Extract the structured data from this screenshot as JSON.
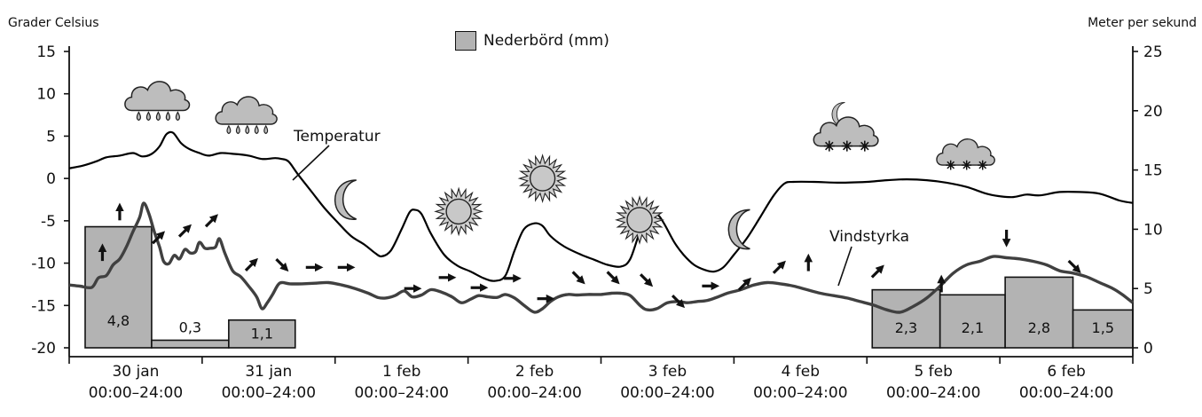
{
  "texts": {
    "left_axis_title": "Grader Celsius",
    "right_axis_title": "Meter per sekund",
    "legend_label": "Nederbörd (mm)",
    "temp_label": "Temperatur",
    "wind_label": "Vindstyrka"
  },
  "chart_data": {
    "type": "line",
    "days": [
      {
        "date": "30 jan",
        "time": "00:00–24:00"
      },
      {
        "date": "31 jan",
        "time": "00:00–24:00"
      },
      {
        "date": "1 feb",
        "time": "00:00–24:00"
      },
      {
        "date": "2 feb",
        "time": "00:00–24:00"
      },
      {
        "date": "3 feb",
        "time": "00:00–24:00"
      },
      {
        "date": "4 feb",
        "time": "00:00–24:00"
      },
      {
        "date": "5 feb",
        "time": "00:00–24:00"
      },
      {
        "date": "6 feb",
        "time": "00:00–24:00"
      }
    ],
    "x_unit": "days since 30 jan 00:00",
    "left_axis": {
      "label": "Grader Celsius",
      "min": -20,
      "max": 15,
      "ticks": [
        15,
        10,
        5,
        0,
        -5,
        -10,
        -15,
        -20
      ]
    },
    "right_axis": {
      "label": "Meter per sekund",
      "min": 0,
      "max": 25,
      "ticks": [
        25,
        20,
        15,
        10,
        5,
        0
      ]
    },
    "precipitation": {
      "name": "Nederbörd (mm)",
      "color": "#b3b3b3",
      "bars": [
        {
          "from": 0.12,
          "to": 0.62,
          "value": 4.8,
          "label": "4,8"
        },
        {
          "from": 0.62,
          "to": 1.2,
          "value": 0.3,
          "label": "0,3"
        },
        {
          "from": 1.2,
          "to": 1.7,
          "value": 1.1,
          "label": "1,1"
        },
        {
          "from": 6.04,
          "to": 6.55,
          "value": 2.3,
          "label": "2,3"
        },
        {
          "from": 6.55,
          "to": 7.04,
          "value": 2.1,
          "label": "2,1"
        },
        {
          "from": 7.04,
          "to": 7.55,
          "value": 2.8,
          "label": "2,8"
        },
        {
          "from": 7.55,
          "to": 8.0,
          "value": 1.5,
          "label": "1,5"
        }
      ]
    },
    "temperature": {
      "name": "Temperatur",
      "unit": "°C",
      "color": "#000000",
      "points": [
        [
          0,
          1.2
        ],
        [
          0.1,
          1.5
        ],
        [
          0.2,
          2.0
        ],
        [
          0.28,
          2.5
        ],
        [
          0.38,
          2.7
        ],
        [
          0.48,
          3.0
        ],
        [
          0.55,
          2.6
        ],
        [
          0.62,
          2.9
        ],
        [
          0.68,
          3.8
        ],
        [
          0.73,
          5.2
        ],
        [
          0.78,
          5.4
        ],
        [
          0.84,
          4.2
        ],
        [
          0.9,
          3.5
        ],
        [
          0.98,
          3.0
        ],
        [
          1.05,
          2.7
        ],
        [
          1.14,
          3.0
        ],
        [
          1.24,
          2.9
        ],
        [
          1.35,
          2.7
        ],
        [
          1.45,
          2.3
        ],
        [
          1.55,
          2.4
        ],
        [
          1.6,
          2.3
        ],
        [
          1.65,
          2.0
        ],
        [
          1.72,
          0.5
        ],
        [
          1.82,
          -1.5
        ],
        [
          1.92,
          -3.5
        ],
        [
          2.02,
          -5.2
        ],
        [
          2.12,
          -6.8
        ],
        [
          2.22,
          -7.8
        ],
        [
          2.3,
          -8.8
        ],
        [
          2.35,
          -9.2
        ],
        [
          2.42,
          -8.5
        ],
        [
          2.5,
          -6.0
        ],
        [
          2.56,
          -4.0
        ],
        [
          2.6,
          -3.7
        ],
        [
          2.65,
          -4.2
        ],
        [
          2.72,
          -6.5
        ],
        [
          2.82,
          -9.0
        ],
        [
          2.92,
          -10.3
        ],
        [
          3.02,
          -11.0
        ],
        [
          3.12,
          -11.8
        ],
        [
          3.2,
          -12.1
        ],
        [
          3.28,
          -11.5
        ],
        [
          3.35,
          -8.5
        ],
        [
          3.42,
          -6.0
        ],
        [
          3.5,
          -5.3
        ],
        [
          3.56,
          -5.6
        ],
        [
          3.62,
          -6.8
        ],
        [
          3.72,
          -8.0
        ],
        [
          3.85,
          -9.0
        ],
        [
          3.95,
          -9.6
        ],
        [
          4.05,
          -10.2
        ],
        [
          4.15,
          -10.4
        ],
        [
          4.22,
          -9.5
        ],
        [
          4.3,
          -6.0
        ],
        [
          4.37,
          -4.4
        ],
        [
          4.42,
          -4.2
        ],
        [
          4.47,
          -5.2
        ],
        [
          4.55,
          -7.5
        ],
        [
          4.62,
          -9.0
        ],
        [
          4.7,
          -10.2
        ],
        [
          4.78,
          -10.8
        ],
        [
          4.85,
          -11.0
        ],
        [
          4.92,
          -10.5
        ],
        [
          5.0,
          -9.0
        ],
        [
          5.1,
          -7.0
        ],
        [
          5.2,
          -4.5
        ],
        [
          5.3,
          -2.0
        ],
        [
          5.38,
          -0.6
        ],
        [
          5.45,
          -0.4
        ],
        [
          5.6,
          -0.4
        ],
        [
          5.8,
          -0.5
        ],
        [
          6.0,
          -0.4
        ],
        [
          6.15,
          -0.2
        ],
        [
          6.3,
          -0.1
        ],
        [
          6.45,
          -0.2
        ],
        [
          6.6,
          -0.5
        ],
        [
          6.75,
          -1.0
        ],
        [
          6.9,
          -1.8
        ],
        [
          7.0,
          -2.1
        ],
        [
          7.1,
          -2.2
        ],
        [
          7.2,
          -1.9
        ],
        [
          7.3,
          -2.0
        ],
        [
          7.45,
          -1.6
        ],
        [
          7.6,
          -1.6
        ],
        [
          7.75,
          -1.8
        ],
        [
          7.9,
          -2.6
        ],
        [
          8.0,
          -2.9
        ]
      ]
    },
    "wind": {
      "name": "Vindstyrka",
      "unit": "m/s",
      "color": "#404040",
      "points": [
        [
          0,
          5.3
        ],
        [
          0.08,
          5.2
        ],
        [
          0.17,
          5.1
        ],
        [
          0.22,
          5.9
        ],
        [
          0.28,
          6.1
        ],
        [
          0.33,
          7.0
        ],
        [
          0.38,
          7.5
        ],
        [
          0.43,
          8.5
        ],
        [
          0.48,
          9.8
        ],
        [
          0.53,
          11.0
        ],
        [
          0.56,
          12.2
        ],
        [
          0.6,
          11.3
        ],
        [
          0.64,
          9.8
        ],
        [
          0.68,
          8.5
        ],
        [
          0.71,
          7.3
        ],
        [
          0.75,
          7.1
        ],
        [
          0.79,
          7.8
        ],
        [
          0.83,
          7.5
        ],
        [
          0.87,
          8.3
        ],
        [
          0.91,
          8.0
        ],
        [
          0.95,
          8.1
        ],
        [
          0.98,
          8.9
        ],
        [
          1.02,
          8.4
        ],
        [
          1.06,
          8.4
        ],
        [
          1.1,
          8.5
        ],
        [
          1.13,
          9.2
        ],
        [
          1.17,
          8.0
        ],
        [
          1.23,
          6.5
        ],
        [
          1.29,
          6.0
        ],
        [
          1.35,
          5.2
        ],
        [
          1.41,
          4.3
        ],
        [
          1.45,
          3.3
        ],
        [
          1.49,
          3.8
        ],
        [
          1.53,
          4.5
        ],
        [
          1.57,
          5.3
        ],
        [
          1.6,
          5.5
        ],
        [
          1.66,
          5.4
        ],
        [
          1.75,
          5.4
        ],
        [
          1.85,
          5.45
        ],
        [
          1.95,
          5.5
        ],
        [
          2.05,
          5.3
        ],
        [
          2.15,
          5.0
        ],
        [
          2.25,
          4.6
        ],
        [
          2.32,
          4.25
        ],
        [
          2.38,
          4.2
        ],
        [
          2.45,
          4.4
        ],
        [
          2.52,
          4.8
        ],
        [
          2.58,
          4.3
        ],
        [
          2.65,
          4.45
        ],
        [
          2.72,
          4.9
        ],
        [
          2.8,
          4.7
        ],
        [
          2.88,
          4.3
        ],
        [
          2.95,
          3.8
        ],
        [
          3.02,
          4.1
        ],
        [
          3.08,
          4.4
        ],
        [
          3.15,
          4.3
        ],
        [
          3.22,
          4.25
        ],
        [
          3.28,
          4.5
        ],
        [
          3.35,
          4.2
        ],
        [
          3.43,
          3.5
        ],
        [
          3.5,
          3.0
        ],
        [
          3.56,
          3.3
        ],
        [
          3.62,
          3.9
        ],
        [
          3.68,
          4.3
        ],
        [
          3.75,
          4.5
        ],
        [
          3.82,
          4.45
        ],
        [
          3.9,
          4.5
        ],
        [
          4.0,
          4.5
        ],
        [
          4.08,
          4.6
        ],
        [
          4.15,
          4.6
        ],
        [
          4.22,
          4.4
        ],
        [
          4.3,
          3.5
        ],
        [
          4.35,
          3.2
        ],
        [
          4.42,
          3.3
        ],
        [
          4.5,
          3.8
        ],
        [
          4.58,
          3.9
        ],
        [
          4.65,
          3.8
        ],
        [
          4.72,
          3.9
        ],
        [
          4.8,
          4.0
        ],
        [
          4.88,
          4.3
        ],
        [
          4.95,
          4.6
        ],
        [
          5.05,
          4.9
        ],
        [
          5.15,
          5.3
        ],
        [
          5.25,
          5.5
        ],
        [
          5.35,
          5.4
        ],
        [
          5.45,
          5.2
        ],
        [
          5.55,
          4.9
        ],
        [
          5.65,
          4.6
        ],
        [
          5.75,
          4.4
        ],
        [
          5.85,
          4.2
        ],
        [
          5.95,
          3.9
        ],
        [
          6.05,
          3.6
        ],
        [
          6.15,
          3.2
        ],
        [
          6.25,
          3.0
        ],
        [
          6.35,
          3.5
        ],
        [
          6.45,
          4.2
        ],
        [
          6.55,
          5.2
        ],
        [
          6.65,
          6.3
        ],
        [
          6.75,
          7.0
        ],
        [
          6.85,
          7.3
        ],
        [
          6.95,
          7.7
        ],
        [
          7.05,
          7.6
        ],
        [
          7.15,
          7.5
        ],
        [
          7.25,
          7.3
        ],
        [
          7.35,
          7.0
        ],
        [
          7.45,
          6.5
        ],
        [
          7.55,
          6.3
        ],
        [
          7.65,
          6.0
        ],
        [
          7.75,
          5.5
        ],
        [
          7.85,
          5.0
        ],
        [
          7.92,
          4.5
        ],
        [
          8.0,
          3.8
        ]
      ]
    },
    "weather_icons": [
      {
        "name": "rain-cloud-icon",
        "day": 0.67,
        "temp": 9.5,
        "scale": 1.0
      },
      {
        "name": "rain-cloud-icon",
        "day": 1.34,
        "temp": 7.8,
        "scale": 0.95
      },
      {
        "name": "moon-icon",
        "day": 2.12,
        "temp": -2.5,
        "scale": 1.0
      },
      {
        "name": "sun-icon",
        "day": 2.93,
        "temp": -3.9,
        "scale": 1.0
      },
      {
        "name": "sun-icon",
        "day": 3.56,
        "temp": 0.0,
        "scale": 1.0
      },
      {
        "name": "sun-icon",
        "day": 4.29,
        "temp": -4.9,
        "scale": 1.0
      },
      {
        "name": "moon-icon",
        "day": 5.08,
        "temp": -6.0,
        "scale": 1.0
      },
      {
        "name": "snow-cloud-icon",
        "day": 5.85,
        "temp": 5.3,
        "scale": 1.0
      },
      {
        "name": "snow-cloud-icon",
        "day": 6.75,
        "temp": 2.9,
        "scale": 0.9
      }
    ],
    "wind_arrows": [
      {
        "day": 0.25,
        "temp": -8.8,
        "dir": "up"
      },
      {
        "day": 0.38,
        "temp": -4.0,
        "dir": "up"
      },
      {
        "day": 0.67,
        "temp": -7.0,
        "dir": "up-right"
      },
      {
        "day": 0.87,
        "temp": -6.2,
        "dir": "up-right"
      },
      {
        "day": 1.07,
        "temp": -5.0,
        "dir": "up-right"
      },
      {
        "day": 1.37,
        "temp": -10.2,
        "dir": "up-right"
      },
      {
        "day": 1.6,
        "temp": -10.2,
        "dir": "down-right"
      },
      {
        "day": 1.84,
        "temp": -10.5,
        "dir": "right"
      },
      {
        "day": 2.08,
        "temp": -10.5,
        "dir": "right"
      },
      {
        "day": 2.58,
        "temp": -13.0,
        "dir": "right"
      },
      {
        "day": 2.84,
        "temp": -11.7,
        "dir": "right"
      },
      {
        "day": 3.08,
        "temp": -12.9,
        "dir": "right"
      },
      {
        "day": 3.33,
        "temp": -11.8,
        "dir": "right"
      },
      {
        "day": 3.58,
        "temp": -14.2,
        "dir": "right"
      },
      {
        "day": 3.83,
        "temp": -11.7,
        "dir": "down-right"
      },
      {
        "day": 4.09,
        "temp": -11.7,
        "dir": "down-right"
      },
      {
        "day": 4.34,
        "temp": -12.0,
        "dir": "down-right"
      },
      {
        "day": 4.58,
        "temp": -14.5,
        "dir": "down-right"
      },
      {
        "day": 4.82,
        "temp": -12.7,
        "dir": "right"
      },
      {
        "day": 5.08,
        "temp": -12.5,
        "dir": "up-right"
      },
      {
        "day": 5.34,
        "temp": -10.5,
        "dir": "up-right"
      },
      {
        "day": 5.56,
        "temp": -10.0,
        "dir": "up"
      },
      {
        "day": 6.08,
        "temp": -11.0,
        "dir": "up-right"
      },
      {
        "day": 6.56,
        "temp": -12.5,
        "dir": "up"
      },
      {
        "day": 7.05,
        "temp": -7.0,
        "dir": "down"
      },
      {
        "day": 7.56,
        "temp": -10.4,
        "dir": "down-right"
      }
    ]
  }
}
